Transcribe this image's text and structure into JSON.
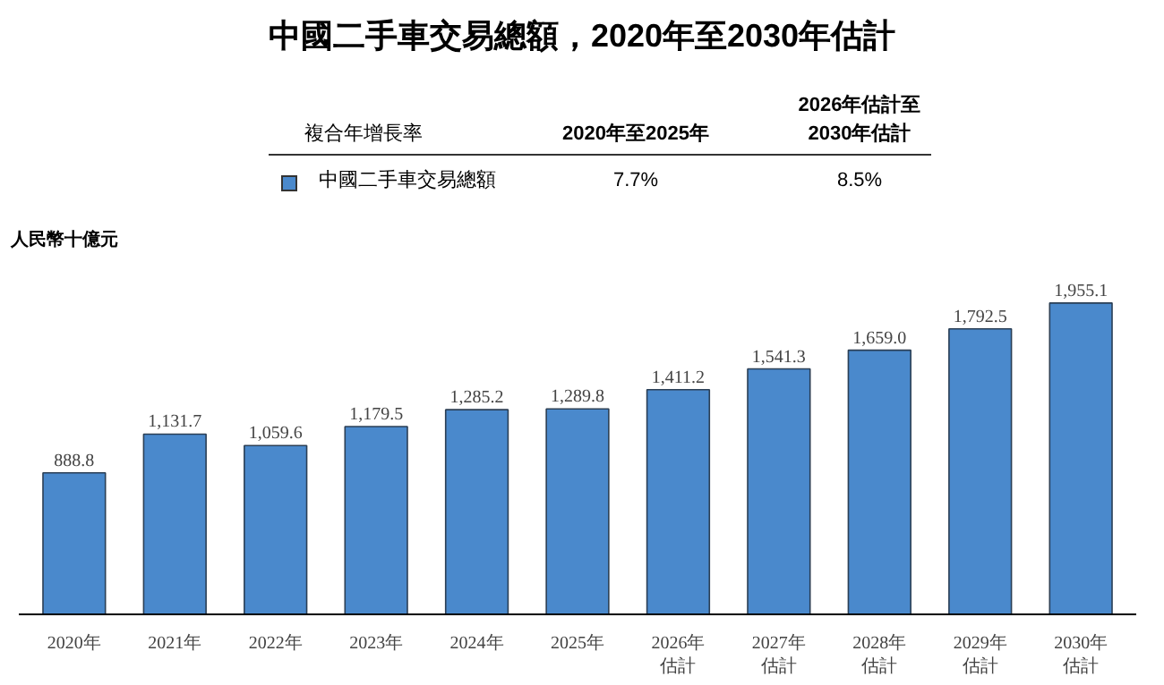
{
  "chart_data": {
    "type": "bar",
    "title": "中國二手車交易總額，2020年至2030年估計",
    "ylabel": "人民幣十億元",
    "categories": [
      "2020年",
      "2021年",
      "2022年",
      "2023年",
      "2024年",
      "2025年",
      "2026年估計",
      "2027年估計",
      "2028年估計",
      "2029年估計",
      "2030年估計"
    ],
    "series": [
      {
        "name": "中國二手車交易總額",
        "color": "#4a89cc",
        "values": [
          888.8,
          1131.7,
          1059.6,
          1179.5,
          1285.2,
          1289.8,
          1411.2,
          1541.3,
          1659.0,
          1792.5,
          1955.1
        ],
        "value_labels": [
          "888.8",
          "1,131.7",
          "1,059.6",
          "1,179.5",
          "1,285.2",
          "1,289.8",
          "1,411.2",
          "1,541.3",
          "1,659.0",
          "1,792.5",
          "1,955.1"
        ]
      }
    ],
    "annotations": [
      "複合年增長率",
      "2020年至2025年",
      "2026年估計至\n2030年估計",
      "7.7%",
      "8.5%"
    ],
    "legend": "top",
    "grid": false
  }
}
